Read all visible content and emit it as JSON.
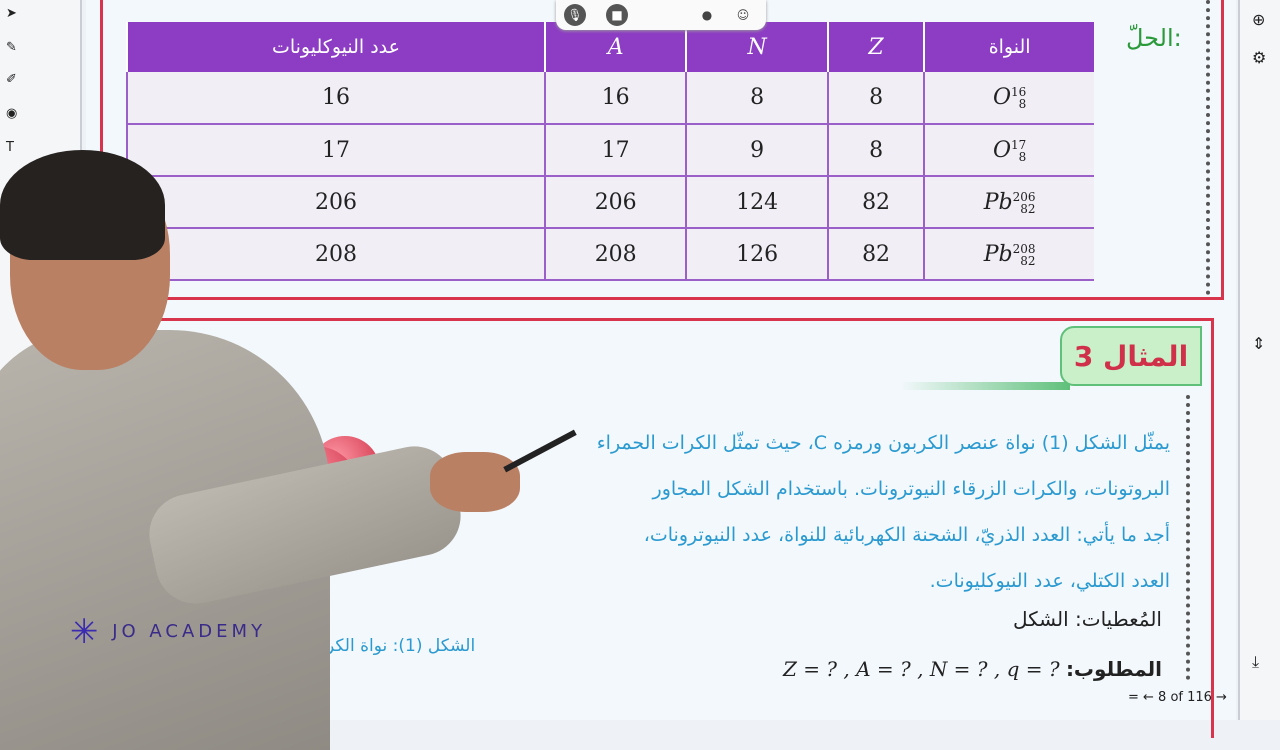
{
  "toolbar": {
    "left_tools": [
      "cursor-icon",
      "pen-icon",
      "marker-icon",
      "target-icon",
      "text-icon"
    ],
    "right_tools": [
      "zoom-in-icon",
      "gear-icon",
      "scroll-icon",
      "download-icon"
    ],
    "top": [
      "microphone-icon",
      "camera-icon",
      "record-icon",
      "emoji-icon"
    ]
  },
  "solution_label": "الحلّ:",
  "table": {
    "headers": [
      "النواة",
      "Z",
      "N",
      "A",
      "عدد النيوكليونات"
    ],
    "rows": [
      {
        "A_sup": "16",
        "Z_sub": "8",
        "sym": "O",
        "Z": "8",
        "N": "8",
        "A": "16",
        "nucleons": "16"
      },
      {
        "A_sup": "17",
        "Z_sub": "8",
        "sym": "O",
        "Z": "8",
        "N": "9",
        "A": "17",
        "nucleons": "17"
      },
      {
        "A_sup": "206",
        "Z_sub": "82",
        "sym": "Pb",
        "Z": "82",
        "N": "124",
        "A": "206",
        "nucleons": "206"
      },
      {
        "A_sup": "208",
        "Z_sub": "82",
        "sym": "Pb",
        "Z": "82",
        "N": "126",
        "A": "208",
        "nucleons": "208"
      }
    ]
  },
  "example": {
    "title": "المثال 3",
    "lines": [
      "يمثّل الشكل (1) نواة عنصر الكربون ورمزه C، حيث تمثّل الكرات الحمراء",
      "البروتونات، والكرات الزرقاء النيوترونات. باستخدام الشكل المجاور",
      "أجد ما يأتي: العدد الذريّ، الشحنة الكهربائية للنواة، عدد النيوترونات،",
      "العدد الكتلي، عدد النيوكليونات."
    ],
    "given": "المُعطيات: الشكل",
    "required_label": "المطلوب:",
    "required_expr": "Z = ? ,  A = ? ,  N = ? ,  q = ?",
    "figure_caption": "الشكل (1): نواة الكربون"
  },
  "pager": "= ← 8 of 116 →",
  "watermark": "JO ACADEMY",
  "colors": {
    "frame": "#d8344c",
    "table_header": "#8d3cc4",
    "text_blue": "#2b9ad0",
    "solution_green": "#2a9a3a"
  }
}
